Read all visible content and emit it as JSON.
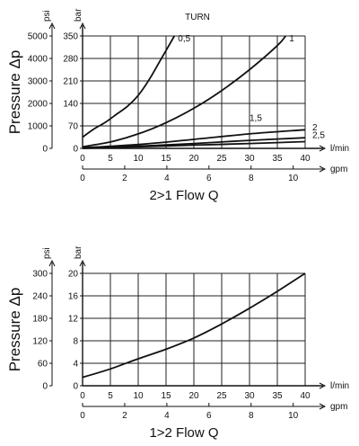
{
  "chart_data": [
    {
      "type": "line",
      "title": "TURN",
      "ylabel": "Pressure Δp",
      "xlabel": "2>1  Flow Q",
      "left_unit": "psi",
      "right_unit": "bar",
      "x_unit": "l/min",
      "x2_unit": "gpm",
      "xlim": [
        0,
        40
      ],
      "ylim": [
        0,
        350
      ],
      "xticks": [
        "0",
        "5",
        "10",
        "15",
        "20",
        "25",
        "30",
        "35",
        "40"
      ],
      "x2ticks": [
        "0",
        "2",
        "4",
        "6",
        "8",
        "10"
      ],
      "yticks_bar": [
        "0",
        "70",
        "140",
        "210",
        "280",
        "350"
      ],
      "yticks_psi": [
        "0",
        "1000",
        "2000",
        "3000",
        "4000",
        "5000"
      ],
      "grid": true,
      "series": [
        {
          "name": "0,5",
          "x": [
            0,
            2,
            4,
            6,
            8,
            10,
            12,
            14,
            16.5
          ],
          "y": [
            35,
            60,
            80,
            105,
            130,
            165,
            215,
            275,
            350
          ]
        },
        {
          "name": "1",
          "x": [
            0,
            5,
            10,
            15,
            20,
            25,
            30,
            35,
            36.5
          ],
          "y": [
            5,
            20,
            45,
            80,
            125,
            180,
            245,
            320,
            350
          ]
        },
        {
          "name": "1,5",
          "x": [
            0,
            10,
            20,
            30,
            40
          ],
          "y": [
            2,
            12,
            28,
            45,
            58
          ]
        },
        {
          "name": "2",
          "x": [
            0,
            10,
            20,
            30,
            40
          ],
          "y": [
            1,
            7,
            15,
            25,
            33
          ]
        },
        {
          "name": "2,5",
          "x": [
            0,
            10,
            20,
            30,
            40
          ],
          "y": [
            0,
            5,
            10,
            15,
            21
          ]
        }
      ]
    },
    {
      "type": "line",
      "title": "",
      "ylabel": "Pressure Δp",
      "xlabel": "1>2  Flow Q",
      "left_unit": "psi",
      "right_unit": "bar",
      "x_unit": "l/min",
      "x2_unit": "gpm",
      "xlim": [
        0,
        40
      ],
      "ylim": [
        0,
        20
      ],
      "xticks": [
        "0",
        "5",
        "10",
        "15",
        "20",
        "25",
        "30",
        "35",
        "40"
      ],
      "x2ticks": [
        "0",
        "2",
        "4",
        "6",
        "8",
        "10"
      ],
      "yticks_bar": [
        "0",
        "4",
        "8",
        "12",
        "16",
        "20"
      ],
      "yticks_psi": [
        "0",
        "60",
        "120",
        "180",
        "240",
        "300"
      ],
      "grid": true,
      "series": [
        {
          "name": "",
          "x": [
            0,
            5,
            10,
            15,
            20,
            25,
            30,
            35,
            40
          ],
          "y": [
            1.5,
            3,
            4.8,
            6.5,
            8.5,
            11,
            13.8,
            16.8,
            20
          ]
        }
      ]
    }
  ]
}
